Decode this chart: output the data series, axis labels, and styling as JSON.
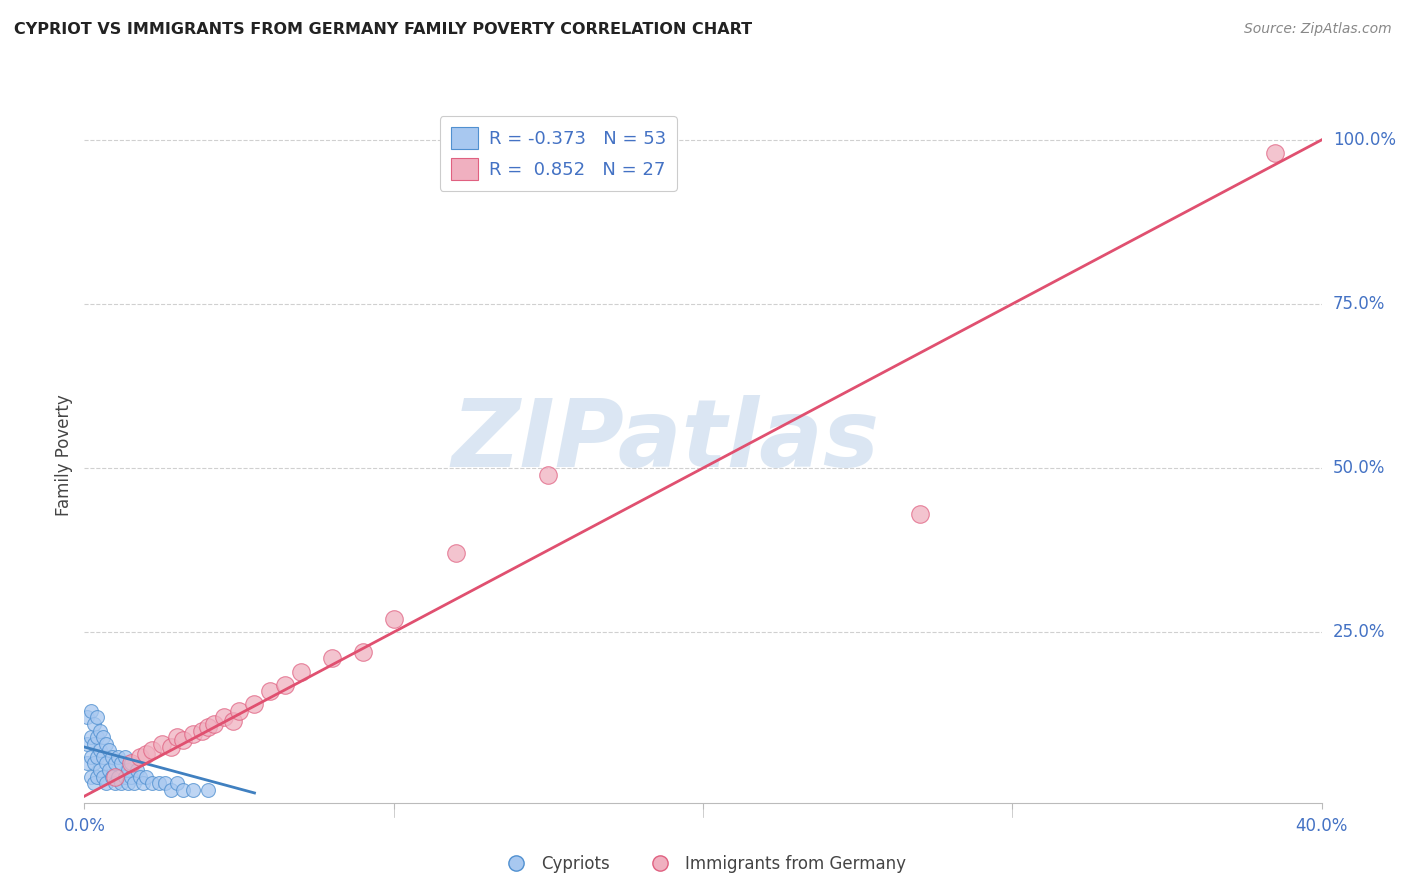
{
  "title": "CYPRIOT VS IMMIGRANTS FROM GERMANY FAMILY POVERTY CORRELATION CHART",
  "source": "Source: ZipAtlas.com",
  "ylabel": "Family Poverty",
  "xlabel": "",
  "xlim": [
    0,
    0.4
  ],
  "ylim": [
    -0.01,
    1.05
  ],
  "xticks": [
    0.0,
    0.1,
    0.2,
    0.3,
    0.4
  ],
  "xtick_labels": [
    "0.0%",
    "",
    "",
    "",
    "40.0%"
  ],
  "yticks_right": [
    0.25,
    0.5,
    0.75,
    1.0
  ],
  "ytick_right_labels": [
    "25.0%",
    "50.0%",
    "75.0%",
    "100.0%"
  ],
  "grid_color": "#d0d0d0",
  "bg_color": "#ffffff",
  "blue_color": "#a8c8f0",
  "pink_color": "#f0b0c0",
  "blue_edge_color": "#5090d0",
  "pink_edge_color": "#e06080",
  "blue_line_color": "#4080c0",
  "pink_line_color": "#e05070",
  "legend_r_blue": "-0.373",
  "legend_n_blue": "53",
  "legend_r_pink": "0.852",
  "legend_n_pink": "27",
  "legend_label_blue": "Cypriots",
  "legend_label_pink": "Immigrants from Germany",
  "watermark": "ZIPatlas",
  "blue_dots_x": [
    0.001,
    0.001,
    0.001,
    0.002,
    0.002,
    0.002,
    0.002,
    0.003,
    0.003,
    0.003,
    0.003,
    0.004,
    0.004,
    0.004,
    0.004,
    0.005,
    0.005,
    0.005,
    0.006,
    0.006,
    0.006,
    0.007,
    0.007,
    0.007,
    0.008,
    0.008,
    0.009,
    0.009,
    0.01,
    0.01,
    0.011,
    0.011,
    0.012,
    0.012,
    0.013,
    0.013,
    0.014,
    0.014,
    0.015,
    0.015,
    0.016,
    0.017,
    0.018,
    0.019,
    0.02,
    0.022,
    0.024,
    0.026,
    0.028,
    0.03,
    0.032,
    0.035,
    0.04
  ],
  "blue_dots_y": [
    0.05,
    0.08,
    0.12,
    0.03,
    0.06,
    0.09,
    0.13,
    0.02,
    0.05,
    0.08,
    0.11,
    0.03,
    0.06,
    0.09,
    0.12,
    0.04,
    0.07,
    0.1,
    0.03,
    0.06,
    0.09,
    0.02,
    0.05,
    0.08,
    0.04,
    0.07,
    0.03,
    0.06,
    0.02,
    0.05,
    0.03,
    0.06,
    0.02,
    0.05,
    0.03,
    0.06,
    0.02,
    0.04,
    0.03,
    0.05,
    0.02,
    0.04,
    0.03,
    0.02,
    0.03,
    0.02,
    0.02,
    0.02,
    0.01,
    0.02,
    0.01,
    0.01,
    0.01
  ],
  "pink_dots_x": [
    0.01,
    0.015,
    0.018,
    0.02,
    0.022,
    0.025,
    0.028,
    0.03,
    0.032,
    0.035,
    0.038,
    0.04,
    0.042,
    0.045,
    0.048,
    0.05,
    0.055,
    0.06,
    0.065,
    0.07,
    0.08,
    0.09,
    0.1,
    0.12,
    0.15,
    0.27,
    0.385
  ],
  "pink_dots_y": [
    0.03,
    0.05,
    0.06,
    0.065,
    0.07,
    0.08,
    0.075,
    0.09,
    0.085,
    0.095,
    0.1,
    0.105,
    0.11,
    0.12,
    0.115,
    0.13,
    0.14,
    0.16,
    0.17,
    0.19,
    0.21,
    0.22,
    0.27,
    0.37,
    0.49,
    0.43,
    0.98
  ],
  "blue_line_x": [
    0.0,
    0.055
  ],
  "blue_line_y": [
    0.075,
    0.005
  ],
  "pink_line_x": [
    0.0,
    0.4
  ],
  "pink_line_y": [
    0.0,
    1.0
  ]
}
